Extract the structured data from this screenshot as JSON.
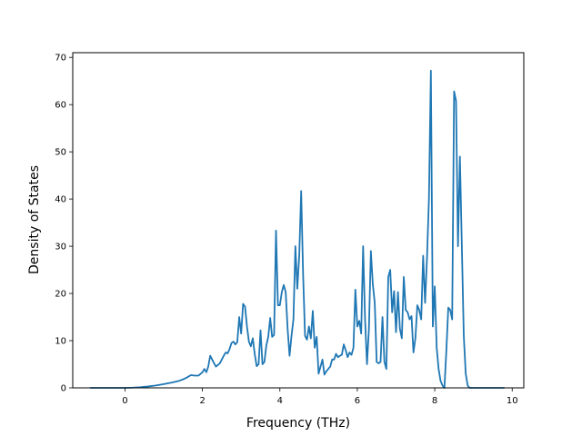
{
  "chart_data": {
    "type": "line",
    "title": "",
    "xlabel": "Frequency (THz)",
    "ylabel": "Density of States",
    "xlim": [
      -1.35,
      10.3
    ],
    "ylim": [
      0,
      71
    ],
    "xticks": [
      0,
      2,
      4,
      6,
      8,
      10
    ],
    "xtick_labels": [
      "0",
      "2",
      "4",
      "6",
      "8",
      "10"
    ],
    "yticks": [
      0,
      10,
      20,
      30,
      40,
      50,
      60,
      70
    ],
    "ytick_labels": [
      "0",
      "10",
      "20",
      "30",
      "40",
      "50",
      "60",
      "70"
    ],
    "grid": false,
    "legend": "none",
    "series": [
      {
        "color": "#1f77b4",
        "points": [
          [
            -0.9,
            0.0
          ],
          [
            -0.5,
            0.0
          ],
          [
            0.0,
            0.0
          ],
          [
            0.2,
            0.05
          ],
          [
            0.4,
            0.15
          ],
          [
            0.6,
            0.3
          ],
          [
            0.8,
            0.5
          ],
          [
            1.0,
            0.8
          ],
          [
            1.2,
            1.1
          ],
          [
            1.4,
            1.5
          ],
          [
            1.5,
            1.8
          ],
          [
            1.6,
            2.2
          ],
          [
            1.7,
            2.7
          ],
          [
            1.8,
            2.6
          ],
          [
            1.9,
            2.6
          ],
          [
            2.0,
            3.3
          ],
          [
            2.05,
            4.0
          ],
          [
            2.1,
            3.3
          ],
          [
            2.15,
            4.5
          ],
          [
            2.2,
            6.8
          ],
          [
            2.3,
            5.2
          ],
          [
            2.35,
            4.5
          ],
          [
            2.45,
            5.2
          ],
          [
            2.5,
            6.0
          ],
          [
            2.55,
            6.8
          ],
          [
            2.6,
            7.5
          ],
          [
            2.65,
            7.3
          ],
          [
            2.7,
            8.2
          ],
          [
            2.75,
            9.5
          ],
          [
            2.8,
            9.8
          ],
          [
            2.85,
            9.2
          ],
          [
            2.9,
            9.7
          ],
          [
            2.95,
            15.0
          ],
          [
            3.0,
            11.5
          ],
          [
            3.05,
            17.8
          ],
          [
            3.1,
            17.2
          ],
          [
            3.15,
            13.0
          ],
          [
            3.2,
            9.8
          ],
          [
            3.25,
            8.8
          ],
          [
            3.3,
            10.5
          ],
          [
            3.35,
            7.2
          ],
          [
            3.4,
            4.6
          ],
          [
            3.45,
            5.0
          ],
          [
            3.5,
            12.2
          ],
          [
            3.55,
            5.0
          ],
          [
            3.6,
            5.5
          ],
          [
            3.65,
            9.0
          ],
          [
            3.7,
            10.8
          ],
          [
            3.75,
            14.8
          ],
          [
            3.8,
            10.8
          ],
          [
            3.85,
            11.2
          ],
          [
            3.9,
            33.3
          ],
          [
            3.95,
            17.5
          ],
          [
            4.0,
            17.5
          ],
          [
            4.05,
            20.3
          ],
          [
            4.1,
            21.8
          ],
          [
            4.15,
            20.3
          ],
          [
            4.2,
            12.5
          ],
          [
            4.25,
            6.8
          ],
          [
            4.3,
            11.0
          ],
          [
            4.35,
            14.5
          ],
          [
            4.4,
            30.0
          ],
          [
            4.45,
            21.0
          ],
          [
            4.5,
            28.0
          ],
          [
            4.55,
            41.7
          ],
          [
            4.6,
            24.0
          ],
          [
            4.65,
            11.0
          ],
          [
            4.7,
            10.2
          ],
          [
            4.75,
            13.0
          ],
          [
            4.8,
            10.5
          ],
          [
            4.85,
            16.3
          ],
          [
            4.9,
            8.5
          ],
          [
            4.95,
            10.8
          ],
          [
            5.0,
            3.0
          ],
          [
            5.05,
            4.5
          ],
          [
            5.1,
            6.0
          ],
          [
            5.15,
            2.8
          ],
          [
            5.2,
            3.5
          ],
          [
            5.3,
            4.5
          ],
          [
            5.35,
            6.0
          ],
          [
            5.4,
            6.0
          ],
          [
            5.45,
            7.2
          ],
          [
            5.5,
            6.5
          ],
          [
            5.55,
            6.8
          ],
          [
            5.6,
            7.0
          ],
          [
            5.65,
            9.2
          ],
          [
            5.7,
            8.0
          ],
          [
            5.75,
            6.5
          ],
          [
            5.8,
            7.5
          ],
          [
            5.85,
            7.0
          ],
          [
            5.9,
            8.5
          ],
          [
            5.95,
            20.8
          ],
          [
            6.0,
            13.0
          ],
          [
            6.05,
            14.2
          ],
          [
            6.1,
            11.5
          ],
          [
            6.15,
            30.0
          ],
          [
            6.2,
            14.5
          ],
          [
            6.25,
            5.0
          ],
          [
            6.3,
            12.5
          ],
          [
            6.35,
            29.0
          ],
          [
            6.4,
            22.0
          ],
          [
            6.45,
            18.0
          ],
          [
            6.5,
            5.5
          ],
          [
            6.55,
            5.2
          ],
          [
            6.6,
            5.5
          ],
          [
            6.65,
            15.0
          ],
          [
            6.7,
            5.5
          ],
          [
            6.75,
            4.0
          ],
          [
            6.8,
            23.5
          ],
          [
            6.85,
            25.0
          ],
          [
            6.9,
            16.0
          ],
          [
            6.95,
            20.5
          ],
          [
            7.0,
            11.8
          ],
          [
            7.05,
            20.3
          ],
          [
            7.1,
            12.5
          ],
          [
            7.15,
            10.5
          ],
          [
            7.2,
            23.5
          ],
          [
            7.25,
            16.5
          ],
          [
            7.3,
            16.0
          ],
          [
            7.35,
            14.5
          ],
          [
            7.4,
            15.2
          ],
          [
            7.45,
            7.5
          ],
          [
            7.5,
            10.5
          ],
          [
            7.55,
            17.5
          ],
          [
            7.6,
            16.5
          ],
          [
            7.65,
            14.5
          ],
          [
            7.7,
            28.0
          ],
          [
            7.75,
            18.0
          ],
          [
            7.8,
            27.5
          ],
          [
            7.85,
            40.0
          ],
          [
            7.9,
            67.2
          ],
          [
            7.95,
            13.0
          ],
          [
            8.0,
            21.5
          ],
          [
            8.05,
            8.5
          ],
          [
            8.1,
            4.0
          ],
          [
            8.15,
            1.5
          ],
          [
            8.2,
            0.5
          ],
          [
            8.25,
            0.0
          ],
          [
            8.3,
            8.0
          ],
          [
            8.35,
            17.0
          ],
          [
            8.4,
            16.5
          ],
          [
            8.45,
            14.5
          ],
          [
            8.5,
            62.8
          ],
          [
            8.55,
            60.8
          ],
          [
            8.6,
            30.0
          ],
          [
            8.65,
            49.0
          ],
          [
            8.7,
            30.0
          ],
          [
            8.75,
            11.0
          ],
          [
            8.8,
            3.0
          ],
          [
            8.85,
            0.5
          ],
          [
            8.9,
            0.0
          ],
          [
            9.3,
            0.0
          ],
          [
            9.8,
            0.0
          ]
        ]
      }
    ]
  }
}
